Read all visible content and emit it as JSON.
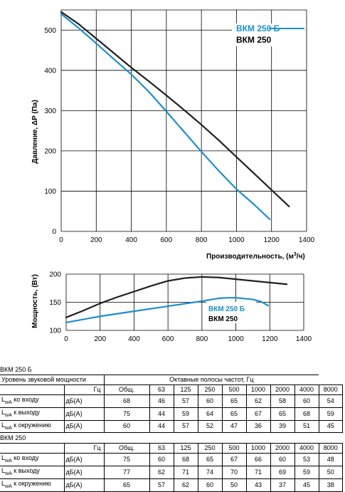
{
  "chart_data": [
    {
      "type": "line",
      "xlabel": "Производительность, (м³/ч)",
      "xlabel_base": "Производительность, (м",
      "xlabel_sup": "3",
      "xlabel_tail": "/ч)",
      "ylabel": "Давление, ΔP (Па)",
      "xlim": [
        0,
        1400
      ],
      "ylim": [
        0,
        550
      ],
      "xticks": [
        0,
        200,
        400,
        600,
        800,
        1000,
        1200,
        1400
      ],
      "yticks": [
        0,
        100,
        200,
        300,
        400,
        500
      ],
      "grid": true,
      "legend_position": "top-right",
      "series": [
        {
          "name": "ВКМ 250 Б",
          "color": "#1a8fd0",
          "x": [
            0,
            100,
            200,
            300,
            400,
            500,
            600,
            700,
            800,
            900,
            1000,
            1100,
            1190
          ],
          "y": [
            540,
            505,
            467,
            428,
            390,
            347,
            298,
            248,
            198,
            150,
            105,
            67,
            30
          ]
        },
        {
          "name": "ВКМ 250",
          "color": "#231f20",
          "x": [
            0,
            100,
            200,
            300,
            400,
            500,
            600,
            700,
            800,
            900,
            1000,
            1100,
            1200,
            1300
          ],
          "y": [
            545,
            515,
            479,
            443,
            407,
            373,
            338,
            302,
            265,
            226,
            185,
            144,
            103,
            62
          ]
        }
      ]
    },
    {
      "type": "line",
      "ylabel": "Мощность, (Вт)",
      "xlim": [
        0,
        1400
      ],
      "ylim": [
        100,
        200
      ],
      "xticks": [
        0,
        200,
        400,
        600,
        800,
        1000,
        1200,
        1400
      ],
      "yticks": [
        100,
        150,
        200
      ],
      "grid": true,
      "legend_position": "bottom-right",
      "series": [
        {
          "name": "ВКМ 250 Б",
          "color": "#1a8fd0",
          "x": [
            0,
            200,
            400,
            600,
            800,
            900,
            950,
            1000,
            1100,
            1150,
            1190
          ],
          "y": [
            114,
            125,
            134,
            143,
            152,
            157,
            158,
            158,
            155,
            151,
            144
          ]
        },
        {
          "name": "ВКМ 250",
          "color": "#231f20",
          "x": [
            0,
            100,
            200,
            300,
            400,
            500,
            600,
            700,
            800,
            900,
            1000,
            1100,
            1200,
            1300
          ],
          "y": [
            123,
            135,
            148,
            159,
            169,
            179,
            188,
            193,
            195,
            194,
            191,
            188,
            185,
            182
          ]
        }
      ]
    }
  ],
  "tables": [
    {
      "title": "ВКМ 250 Б",
      "header_left": "Уровень звуковой мощности",
      "header_right": "Октавные полосы частот, Гц",
      "hz_label": "Гц",
      "columns": [
        "Общ.",
        "63",
        "125",
        "250",
        "500",
        "1000",
        "2000",
        "4000",
        "8000"
      ],
      "rows": [
        {
          "sub": "wA",
          "label": "ко входу",
          "unit": "дБ(А)",
          "values": [
            "68",
            "46",
            "57",
            "60",
            "65",
            "62",
            "58",
            "60",
            "54"
          ]
        },
        {
          "sub": "wA",
          "label": "к выходу",
          "unit": "дБ(А)",
          "values": [
            "75",
            "44",
            "59",
            "64",
            "65",
            "67",
            "65",
            "68",
            "59"
          ]
        },
        {
          "sub": "wA",
          "label": "к окружению",
          "unit": "дБ(А)",
          "values": [
            "60",
            "44",
            "57",
            "52",
            "47",
            "36",
            "39",
            "51",
            "45"
          ]
        }
      ]
    },
    {
      "title": "ВКМ 250",
      "hz_label": "Гц",
      "columns": [
        "Общ.",
        "63",
        "125",
        "250",
        "500",
        "1000",
        "2000",
        "4000",
        "8000"
      ],
      "rows": [
        {
          "sub": "wA",
          "label": "ко входу",
          "unit": "дБ(А)",
          "values": [
            "75",
            "60",
            "68",
            "65",
            "67",
            "66",
            "60",
            "53",
            "48"
          ]
        },
        {
          "sub": "wA",
          "label": "к выходу",
          "unit": "дБ(А)",
          "values": [
            "77",
            "62",
            "71",
            "74",
            "70",
            "71",
            "69",
            "59",
            "50"
          ]
        },
        {
          "sub": "wA",
          "label": "к окружению",
          "unit": "дБ(А)",
          "values": [
            "65",
            "57",
            "62",
            "60",
            "50",
            "43",
            "37",
            "45",
            "38"
          ]
        }
      ]
    }
  ]
}
